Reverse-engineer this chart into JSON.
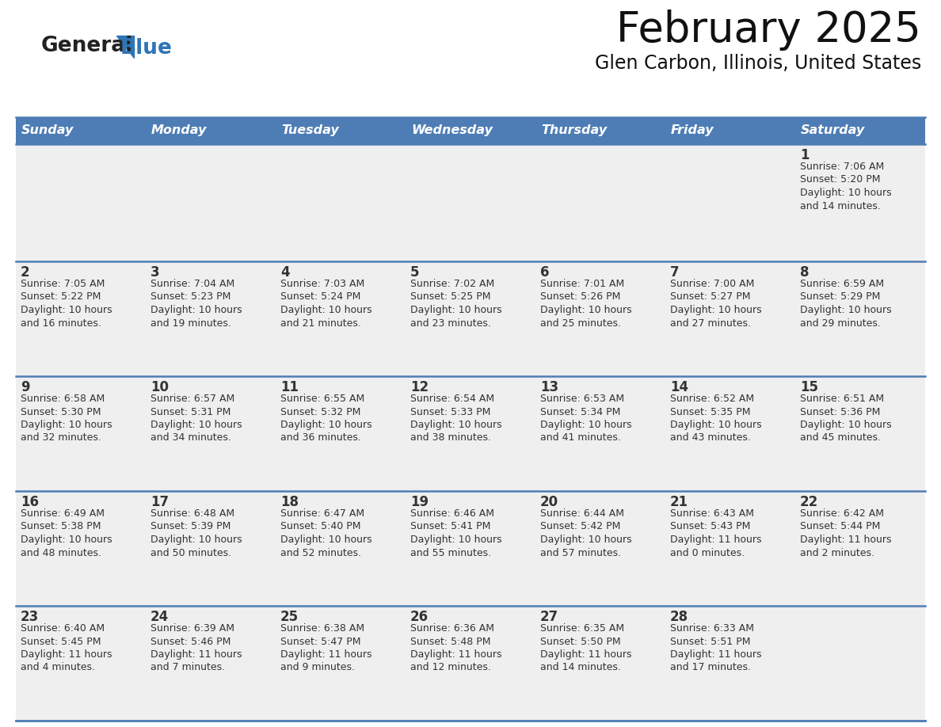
{
  "title": "February 2025",
  "subtitle": "Glen Carbon, Illinois, United States",
  "days_of_week": [
    "Sunday",
    "Monday",
    "Tuesday",
    "Wednesday",
    "Thursday",
    "Friday",
    "Saturday"
  ],
  "header_bg": "#4E7DB5",
  "header_text": "#FFFFFF",
  "cell_bg": "#EFEFEF",
  "day_num_color": "#333333",
  "text_color": "#333333",
  "line_color": "#4E7DB5",
  "bg_color": "#FFFFFF",
  "logo_general_color": "#222222",
  "logo_blue_color": "#2E75B6",
  "calendar_data": [
    [
      {
        "day": null,
        "sunrise": null,
        "sunset": null,
        "daylight": null
      },
      {
        "day": null,
        "sunrise": null,
        "sunset": null,
        "daylight": null
      },
      {
        "day": null,
        "sunrise": null,
        "sunset": null,
        "daylight": null
      },
      {
        "day": null,
        "sunrise": null,
        "sunset": null,
        "daylight": null
      },
      {
        "day": null,
        "sunrise": null,
        "sunset": null,
        "daylight": null
      },
      {
        "day": null,
        "sunrise": null,
        "sunset": null,
        "daylight": null
      },
      {
        "day": 1,
        "sunrise": "7:06 AM",
        "sunset": "5:20 PM",
        "daylight": "10 hours\nand 14 minutes."
      }
    ],
    [
      {
        "day": 2,
        "sunrise": "7:05 AM",
        "sunset": "5:22 PM",
        "daylight": "10 hours\nand 16 minutes."
      },
      {
        "day": 3,
        "sunrise": "7:04 AM",
        "sunset": "5:23 PM",
        "daylight": "10 hours\nand 19 minutes."
      },
      {
        "day": 4,
        "sunrise": "7:03 AM",
        "sunset": "5:24 PM",
        "daylight": "10 hours\nand 21 minutes."
      },
      {
        "day": 5,
        "sunrise": "7:02 AM",
        "sunset": "5:25 PM",
        "daylight": "10 hours\nand 23 minutes."
      },
      {
        "day": 6,
        "sunrise": "7:01 AM",
        "sunset": "5:26 PM",
        "daylight": "10 hours\nand 25 minutes."
      },
      {
        "day": 7,
        "sunrise": "7:00 AM",
        "sunset": "5:27 PM",
        "daylight": "10 hours\nand 27 minutes."
      },
      {
        "day": 8,
        "sunrise": "6:59 AM",
        "sunset": "5:29 PM",
        "daylight": "10 hours\nand 29 minutes."
      }
    ],
    [
      {
        "day": 9,
        "sunrise": "6:58 AM",
        "sunset": "5:30 PM",
        "daylight": "10 hours\nand 32 minutes."
      },
      {
        "day": 10,
        "sunrise": "6:57 AM",
        "sunset": "5:31 PM",
        "daylight": "10 hours\nand 34 minutes."
      },
      {
        "day": 11,
        "sunrise": "6:55 AM",
        "sunset": "5:32 PM",
        "daylight": "10 hours\nand 36 minutes."
      },
      {
        "day": 12,
        "sunrise": "6:54 AM",
        "sunset": "5:33 PM",
        "daylight": "10 hours\nand 38 minutes."
      },
      {
        "day": 13,
        "sunrise": "6:53 AM",
        "sunset": "5:34 PM",
        "daylight": "10 hours\nand 41 minutes."
      },
      {
        "day": 14,
        "sunrise": "6:52 AM",
        "sunset": "5:35 PM",
        "daylight": "10 hours\nand 43 minutes."
      },
      {
        "day": 15,
        "sunrise": "6:51 AM",
        "sunset": "5:36 PM",
        "daylight": "10 hours\nand 45 minutes."
      }
    ],
    [
      {
        "day": 16,
        "sunrise": "6:49 AM",
        "sunset": "5:38 PM",
        "daylight": "10 hours\nand 48 minutes."
      },
      {
        "day": 17,
        "sunrise": "6:48 AM",
        "sunset": "5:39 PM",
        "daylight": "10 hours\nand 50 minutes."
      },
      {
        "day": 18,
        "sunrise": "6:47 AM",
        "sunset": "5:40 PM",
        "daylight": "10 hours\nand 52 minutes."
      },
      {
        "day": 19,
        "sunrise": "6:46 AM",
        "sunset": "5:41 PM",
        "daylight": "10 hours\nand 55 minutes."
      },
      {
        "day": 20,
        "sunrise": "6:44 AM",
        "sunset": "5:42 PM",
        "daylight": "10 hours\nand 57 minutes."
      },
      {
        "day": 21,
        "sunrise": "6:43 AM",
        "sunset": "5:43 PM",
        "daylight": "11 hours\nand 0 minutes."
      },
      {
        "day": 22,
        "sunrise": "6:42 AM",
        "sunset": "5:44 PM",
        "daylight": "11 hours\nand 2 minutes."
      }
    ],
    [
      {
        "day": 23,
        "sunrise": "6:40 AM",
        "sunset": "5:45 PM",
        "daylight": "11 hours\nand 4 minutes."
      },
      {
        "day": 24,
        "sunrise": "6:39 AM",
        "sunset": "5:46 PM",
        "daylight": "11 hours\nand 7 minutes."
      },
      {
        "day": 25,
        "sunrise": "6:38 AM",
        "sunset": "5:47 PM",
        "daylight": "11 hours\nand 9 minutes."
      },
      {
        "day": 26,
        "sunrise": "6:36 AM",
        "sunset": "5:48 PM",
        "daylight": "11 hours\nand 12 minutes."
      },
      {
        "day": 27,
        "sunrise": "6:35 AM",
        "sunset": "5:50 PM",
        "daylight": "11 hours\nand 14 minutes."
      },
      {
        "day": 28,
        "sunrise": "6:33 AM",
        "sunset": "5:51 PM",
        "daylight": "11 hours\nand 17 minutes."
      },
      {
        "day": null,
        "sunrise": null,
        "sunset": null,
        "daylight": null
      }
    ]
  ],
  "figsize": [
    11.88,
    9.18
  ],
  "dpi": 100
}
